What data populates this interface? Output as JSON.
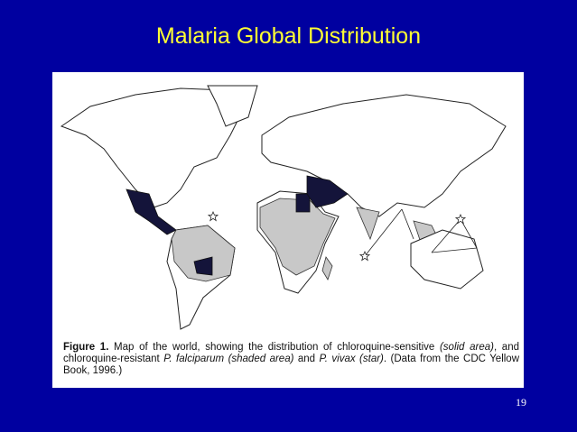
{
  "title": "Malaria Global Distribution",
  "figure": {
    "caption": [
      "Figure 1.",
      " Map of the world, showing the distribution of chloroquine-sensitive ",
      "(solid area)",
      ", and chloroquine-resistant ",
      "P. falciparum (shaded area)",
      " and ",
      "P. vivax (star)",
      ". (Data from the CDC Yellow Book, 1996.)"
    ]
  },
  "page_number": "19"
}
